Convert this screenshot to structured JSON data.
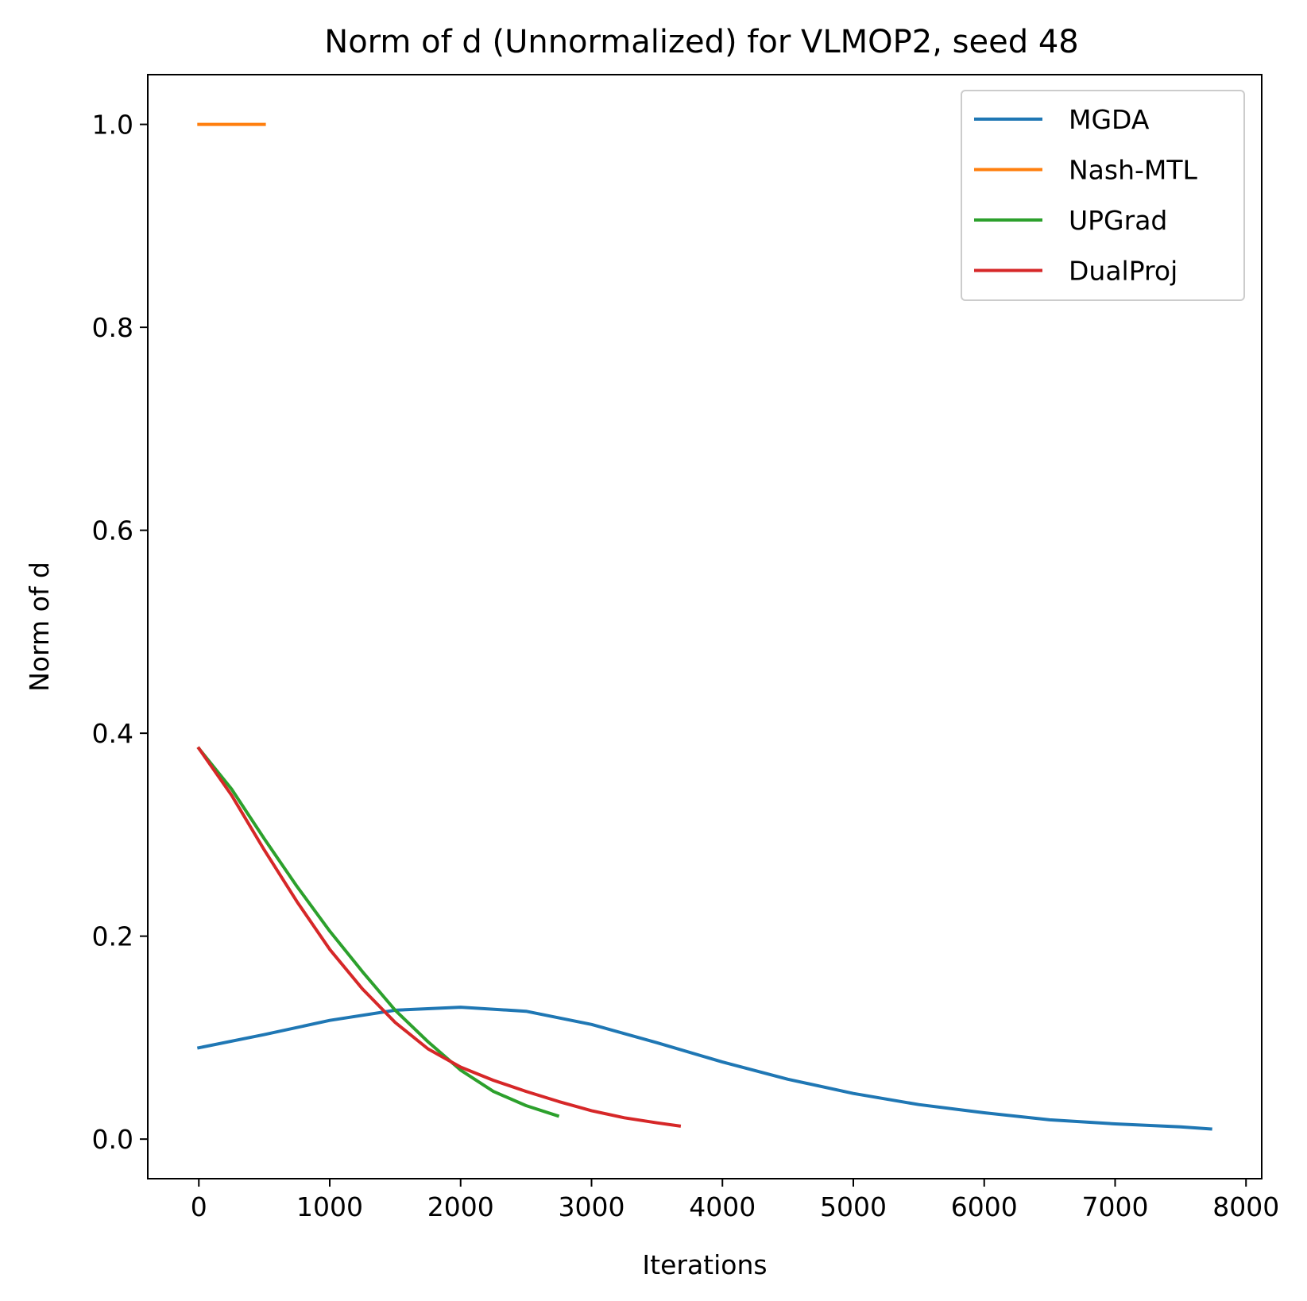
{
  "chart_data": {
    "type": "line",
    "title": "Norm of d (Unnormalized) for VLMOP2, seed 48",
    "xlabel": "Iterations",
    "ylabel": "Norm of d",
    "xlim": [
      -390,
      8120
    ],
    "ylim": [
      -0.039,
      1.049
    ],
    "xticks": [
      0,
      1000,
      2000,
      3000,
      4000,
      5000,
      6000,
      7000,
      8000
    ],
    "xtick_labels": [
      "0",
      "1000",
      "2000",
      "3000",
      "4000",
      "5000",
      "6000",
      "7000",
      "8000"
    ],
    "yticks": [
      0.0,
      0.2,
      0.4,
      0.6,
      0.8,
      1.0
    ],
    "ytick_labels": [
      "0.0",
      "0.2",
      "0.4",
      "0.6",
      "0.8",
      "1.0"
    ],
    "grid": false,
    "legend_position": "top-right",
    "series": [
      {
        "name": "MGDA",
        "color": "#1f77b4",
        "x": [
          0,
          500,
          1000,
          1500,
          2000,
          2500,
          3000,
          3500,
          4000,
          4500,
          5000,
          5500,
          6000,
          6500,
          7000,
          7500,
          7730
        ],
        "y": [
          0.09,
          0.103,
          0.117,
          0.127,
          0.13,
          0.126,
          0.113,
          0.095,
          0.076,
          0.059,
          0.045,
          0.034,
          0.026,
          0.019,
          0.015,
          0.012,
          0.01
        ]
      },
      {
        "name": "Nash-MTL",
        "color": "#ff7f0e",
        "x": [
          0,
          500
        ],
        "y": [
          1.0,
          1.0
        ]
      },
      {
        "name": "UPGrad",
        "color": "#2ca02c",
        "x": [
          0,
          250,
          500,
          750,
          1000,
          1250,
          1500,
          1750,
          2000,
          2250,
          2500,
          2740
        ],
        "y": [
          0.385,
          0.345,
          0.296,
          0.249,
          0.205,
          0.165,
          0.127,
          0.096,
          0.068,
          0.047,
          0.033,
          0.023
        ]
      },
      {
        "name": "DualProj",
        "color": "#d62728",
        "x": [
          0,
          250,
          500,
          750,
          1000,
          1250,
          1500,
          1750,
          2000,
          2250,
          2500,
          2750,
          3000,
          3250,
          3500,
          3670
        ],
        "y": [
          0.385,
          0.339,
          0.285,
          0.234,
          0.187,
          0.148,
          0.115,
          0.089,
          0.071,
          0.058,
          0.047,
          0.037,
          0.028,
          0.021,
          0.016,
          0.013
        ]
      }
    ]
  }
}
